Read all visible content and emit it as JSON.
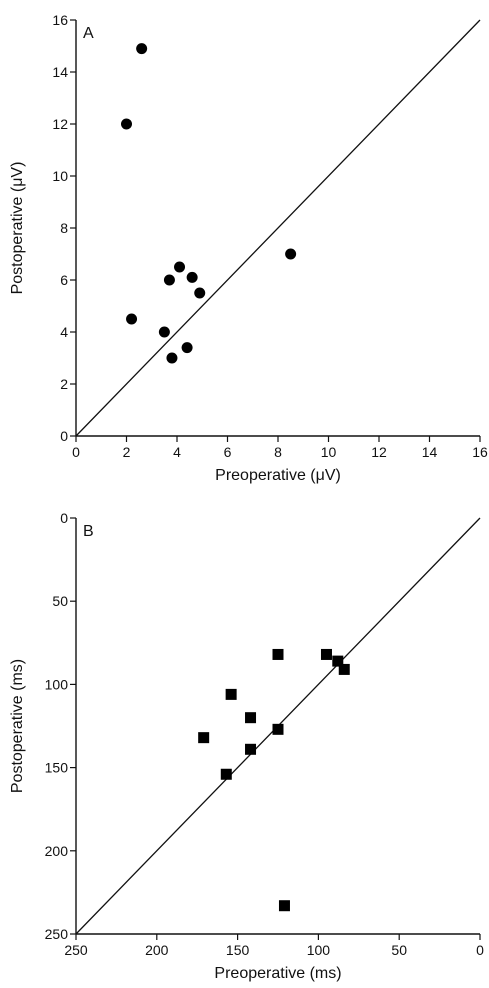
{
  "chart_data": [
    {
      "type": "scatter",
      "panel_label": "A",
      "title": "",
      "xlabel": "Preoperative (μV)",
      "ylabel": "Postoperative (μV)",
      "xlim": [
        0,
        16
      ],
      "ylim": [
        0,
        16
      ],
      "x_reversed": false,
      "y_reversed": false,
      "xticks": [
        0,
        2,
        4,
        6,
        8,
        10,
        12,
        14,
        16
      ],
      "yticks": [
        0,
        2,
        4,
        6,
        8,
        10,
        12,
        14,
        16
      ],
      "marker": "circle",
      "reference_line": "identity (y = x)",
      "grid": false,
      "series": [
        {
          "points": [
            {
              "x": 2.0,
              "y": 12.0
            },
            {
              "x": 2.6,
              "y": 14.9
            },
            {
              "x": 2.2,
              "y": 4.5
            },
            {
              "x": 3.5,
              "y": 4.0
            },
            {
              "x": 3.8,
              "y": 3.0
            },
            {
              "x": 3.7,
              "y": 6.0
            },
            {
              "x": 4.1,
              "y": 6.5
            },
            {
              "x": 4.4,
              "y": 3.4
            },
            {
              "x": 4.6,
              "y": 6.1
            },
            {
              "x": 4.9,
              "y": 5.5
            },
            {
              "x": 8.5,
              "y": 7.0
            }
          ]
        }
      ]
    },
    {
      "type": "scatter",
      "panel_label": "B",
      "title": "",
      "xlabel": "Preoperative (ms)",
      "ylabel": "Postoperative (ms)",
      "xlim": [
        250,
        0
      ],
      "ylim": [
        250,
        0
      ],
      "x_reversed": true,
      "y_reversed": true,
      "xticks": [
        250,
        200,
        150,
        100,
        50,
        0
      ],
      "yticks": [
        0,
        50,
        100,
        150,
        200,
        250
      ],
      "marker": "square",
      "reference_line": "identity (y = x)",
      "grid": false,
      "series": [
        {
          "points": [
            {
              "x": 125,
              "y": 82
            },
            {
              "x": 95,
              "y": 82
            },
            {
              "x": 88,
              "y": 86
            },
            {
              "x": 84,
              "y": 91
            },
            {
              "x": 154,
              "y": 106
            },
            {
              "x": 142,
              "y": 120
            },
            {
              "x": 125,
              "y": 127
            },
            {
              "x": 171,
              "y": 132
            },
            {
              "x": 142,
              "y": 139
            },
            {
              "x": 157,
              "y": 154
            },
            {
              "x": 121,
              "y": 233
            }
          ]
        }
      ]
    }
  ]
}
